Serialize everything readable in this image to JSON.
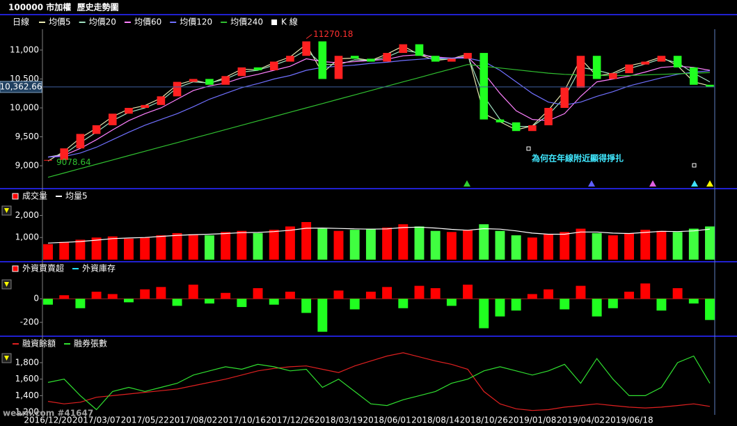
{
  "chart_data": [
    {
      "type": "candlestick",
      "title": "100000 市加權  歷史走勢圖",
      "frequency": "日線",
      "ylim": [
        8640,
        11360
      ],
      "yticks": [
        {
          "value": 9000,
          "label": "9,000"
        },
        {
          "value": 9500,
          "label": "9,500"
        },
        {
          "value": 10000,
          "label": "10,000"
        },
        {
          "value": 10500,
          "label": "10,500"
        },
        {
          "value": 11000,
          "label": "11,000"
        }
      ],
      "high_label": 11270.18,
      "low_label": 9078.64,
      "last": {
        "value": 10362.66,
        "label": "10,362.66"
      },
      "note": "為何在年線附近顯得掙扎",
      "series": [
        {
          "name": "均價5",
          "color": "#e8e8b0",
          "style": "line",
          "values": [
            9080,
            9250,
            9480,
            9650,
            9850,
            9980,
            10040,
            10170,
            10400,
            10480,
            10420,
            10530,
            10670,
            10660,
            10780,
            10880,
            11100,
            10600,
            10850,
            10860,
            10820,
            10930,
            11070,
            10920,
            10820,
            10850,
            10930,
            9900,
            9760,
            9620,
            9690,
            9960,
            10300,
            10850,
            10550,
            10600,
            10730,
            10790,
            10880,
            10730,
            10450,
            10380
          ]
        },
        {
          "name": "均價20",
          "color": "#a0e0c0",
          "style": "line",
          "values": [
            9150,
            9200,
            9400,
            9580,
            9780,
            9920,
            10000,
            10120,
            10350,
            10450,
            10430,
            10500,
            10620,
            10650,
            10740,
            10840,
            11000,
            10750,
            10750,
            10830,
            10820,
            10880,
            11000,
            10950,
            10850,
            10840,
            10900,
            10200,
            9800,
            9680,
            9680,
            9880,
            10180,
            10700,
            10650,
            10580,
            10680,
            10760,
            10850,
            10780,
            10600,
            10450
          ]
        },
        {
          "name": "均價60",
          "color": "#ff80ff",
          "style": "line",
          "values": [
            9150,
            9180,
            9300,
            9450,
            9620,
            9780,
            9900,
            10000,
            10150,
            10300,
            10380,
            10430,
            10520,
            10580,
            10650,
            10720,
            10850,
            10800,
            10780,
            10800,
            10820,
            10840,
            10900,
            10920,
            10880,
            10860,
            10880,
            10600,
            10250,
            9950,
            9800,
            9780,
            9900,
            10200,
            10450,
            10500,
            10550,
            10620,
            10700,
            10720,
            10700,
            10650
          ]
        },
        {
          "name": "均價120",
          "color": "#7070ff",
          "style": "line",
          "values": [
            9150,
            9160,
            9220,
            9320,
            9450,
            9580,
            9700,
            9800,
            9900,
            10020,
            10150,
            10250,
            10350,
            10420,
            10500,
            10560,
            10650,
            10700,
            10720,
            10740,
            10770,
            10790,
            10820,
            10840,
            10860,
            10860,
            10860,
            10800,
            10650,
            10450,
            10250,
            10100,
            10050,
            10100,
            10200,
            10280,
            10380,
            10450,
            10520,
            10580,
            10620,
            10640
          ]
        },
        {
          "name": "均價240",
          "color": "#30c030",
          "style": "line",
          "values": [
            8800,
            8875,
            8950,
            9025,
            9100,
            9175,
            9250,
            9325,
            9400,
            9475,
            9550,
            9625,
            9700,
            9775,
            9850,
            9925,
            10000,
            10075,
            10150,
            10225,
            10300,
            10375,
            10450,
            10525,
            10600,
            10675,
            10750,
            10720,
            10690,
            10660,
            10630,
            10600,
            10580,
            10570,
            10560,
            10560,
            10560,
            10570,
            10580,
            10590,
            10600,
            10610
          ]
        },
        {
          "name": "K 線",
          "color": "#ff2020",
          "down_color": "#20ff20",
          "style": "candle",
          "values": [
            9100,
            9300,
            9550,
            9700,
            9900,
            10000,
            10050,
            10200,
            10450,
            10500,
            10400,
            10550,
            10700,
            10650,
            10800,
            10900,
            11150,
            10500,
            10900,
            10850,
            10800,
            10950,
            11100,
            10900,
            10800,
            10850,
            10950,
            9800,
            9750,
            9600,
            9700,
            10000,
            10350,
            10900,
            10500,
            10600,
            10750,
            10800,
            10900,
            10700,
            10400,
            10360
          ]
        }
      ]
    },
    {
      "type": "bar",
      "ylim": [
        0,
        2550
      ],
      "yticks": [
        {
          "value": 1000,
          "label": "1,000"
        },
        {
          "value": 2000,
          "label": "2,000"
        }
      ],
      "series": [
        {
          "name": "成交量",
          "color": "#ff0000",
          "down_color": "#40ff40",
          "style": "bar",
          "values": [
            700,
            800,
            900,
            1000,
            1050,
            950,
            1000,
            1100,
            1200,
            1150,
            1100,
            1250,
            1300,
            1200,
            1350,
            1500,
            1700,
            1400,
            1300,
            1350,
            1400,
            1450,
            1600,
            1500,
            1300,
            1250,
            1350,
            1600,
            1300,
            1100,
            1000,
            1150,
            1250,
            1400,
            1200,
            1100,
            1200,
            1350,
            1300,
            1250,
            1400,
            1500
          ]
        },
        {
          "name": "均量5",
          "color": "#ffffff",
          "style": "line",
          "values": [
            750,
            780,
            820,
            880,
            950,
            980,
            1000,
            1050,
            1100,
            1130,
            1150,
            1180,
            1220,
            1230,
            1270,
            1330,
            1420,
            1430,
            1410,
            1390,
            1380,
            1390,
            1450,
            1470,
            1430,
            1370,
            1330,
            1400,
            1380,
            1300,
            1200,
            1150,
            1150,
            1250,
            1250,
            1200,
            1180,
            1230,
            1280,
            1270,
            1300,
            1380
          ]
        }
      ]
    },
    {
      "type": "bar",
      "ylim": [
        -300,
        220
      ],
      "yticks": [
        0,
        -200
      ],
      "series": [
        {
          "name": "外資買賣超",
          "color": "#ff0000",
          "down_color": "#20ff20",
          "style": "bar",
          "values": [
            -50,
            30,
            -80,
            60,
            40,
            -30,
            80,
            100,
            -60,
            120,
            -40,
            50,
            -70,
            90,
            -50,
            60,
            -120,
            -280,
            70,
            -90,
            60,
            100,
            -80,
            110,
            90,
            -60,
            120,
            -250,
            -150,
            -100,
            40,
            80,
            -90,
            110,
            -150,
            -80,
            60,
            130,
            -100,
            90,
            -40,
            -180
          ]
        },
        {
          "name": "外資庫存",
          "color": "#20e0ff",
          "style": "line"
        }
      ]
    },
    {
      "type": "line",
      "ylim": [
        1175,
        1935
      ],
      "yticks": [
        {
          "value": 1200,
          "label": "1,200"
        },
        {
          "value": 1400,
          "label": "1,400"
        },
        {
          "value": 1600,
          "label": "1,600"
        },
        {
          "value": 1800,
          "label": "1,800"
        }
      ],
      "watermark": "wearn.com #41647",
      "categories": [
        "2016/12/20",
        null,
        null,
        "2017/03/07",
        null,
        null,
        "2017/05/22",
        null,
        null,
        "2017/08/02",
        null,
        null,
        "2017/10/16",
        null,
        null,
        "2017/12/26",
        null,
        null,
        "2018/03/19",
        null,
        null,
        "2018/06/01",
        null,
        null,
        "2018/08/14",
        null,
        null,
        "2018/10/26",
        null,
        null,
        "2019/01/08",
        null,
        null,
        "2019/04/02",
        null,
        null,
        "2019/06/18",
        null,
        null,
        null,
        null,
        null
      ],
      "series": [
        {
          "name": "融資餘額",
          "color": "#e02020",
          "style": "line",
          "values": [
            1330,
            1300,
            1320,
            1380,
            1400,
            1420,
            1440,
            1460,
            1480,
            1520,
            1560,
            1600,
            1650,
            1700,
            1730,
            1750,
            1760,
            1720,
            1680,
            1760,
            1820,
            1880,
            1920,
            1870,
            1820,
            1780,
            1720,
            1450,
            1300,
            1240,
            1220,
            1230,
            1260,
            1280,
            1300,
            1280,
            1260,
            1250,
            1260,
            1280,
            1300,
            1270
          ]
        },
        {
          "name": "融券張數",
          "color": "#30e030",
          "style": "line",
          "values": [
            1560,
            1600,
            1400,
            1230,
            1450,
            1500,
            1450,
            1500,
            1550,
            1650,
            1700,
            1750,
            1720,
            1780,
            1750,
            1700,
            1720,
            1500,
            1600,
            1450,
            1300,
            1280,
            1350,
            1400,
            1450,
            1550,
            1600,
            1700,
            1750,
            1700,
            1650,
            1700,
            1780,
            1550,
            1850,
            1600,
            1400,
            1400,
            1500,
            1800,
            1880,
            1550
          ]
        }
      ]
    }
  ]
}
